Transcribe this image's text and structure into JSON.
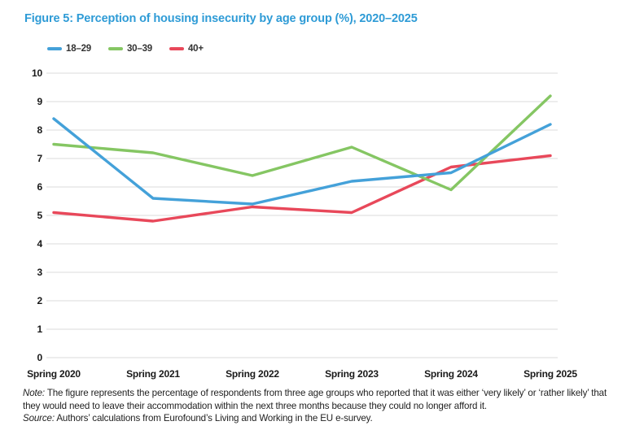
{
  "title": "Figure 5: Perception of housing insecurity by age group (%), 2020–2025",
  "title_color": "#2E9BD6",
  "chart_data": {
    "type": "line",
    "categories": [
      "Spring 2020",
      "Spring 2021",
      "Spring 2022",
      "Spring 2023",
      "Spring 2024",
      "Spring 2025"
    ],
    "series": [
      {
        "name": "18–29",
        "color": "#44A1D9",
        "values": [
          8.4,
          5.6,
          5.4,
          6.2,
          6.5,
          8.2
        ]
      },
      {
        "name": "30–39",
        "color": "#85C663",
        "values": [
          7.5,
          7.2,
          6.4,
          7.4,
          5.9,
          9.2
        ]
      },
      {
        "name": "40+",
        "color": "#E8485A",
        "values": [
          5.1,
          4.8,
          5.3,
          5.1,
          6.7,
          7.1
        ]
      }
    ],
    "ylim": [
      0,
      10
    ],
    "ytick_step": 1,
    "yticks": [
      "0",
      "1",
      "2",
      "3",
      "4",
      "5",
      "6",
      "7",
      "8",
      "9",
      "10"
    ],
    "grid": true,
    "gridline_color": "#DBDBDB",
    "axis_label_color": "#1A1A1A",
    "legend_position": "top-left",
    "xlabel": "",
    "ylabel": ""
  },
  "note": {
    "label": "Note:",
    "text": " The figure represents the percentage of respondents from three age groups who reported that it was either ‘very likely’ or ‘rather likely’ that they would need to leave their accommodation within the next three months because they could no longer afford it."
  },
  "source": {
    "label": "Source:",
    "text": " Authors’ calculations from Eurofound’s Living and Working in the EU e-survey."
  }
}
